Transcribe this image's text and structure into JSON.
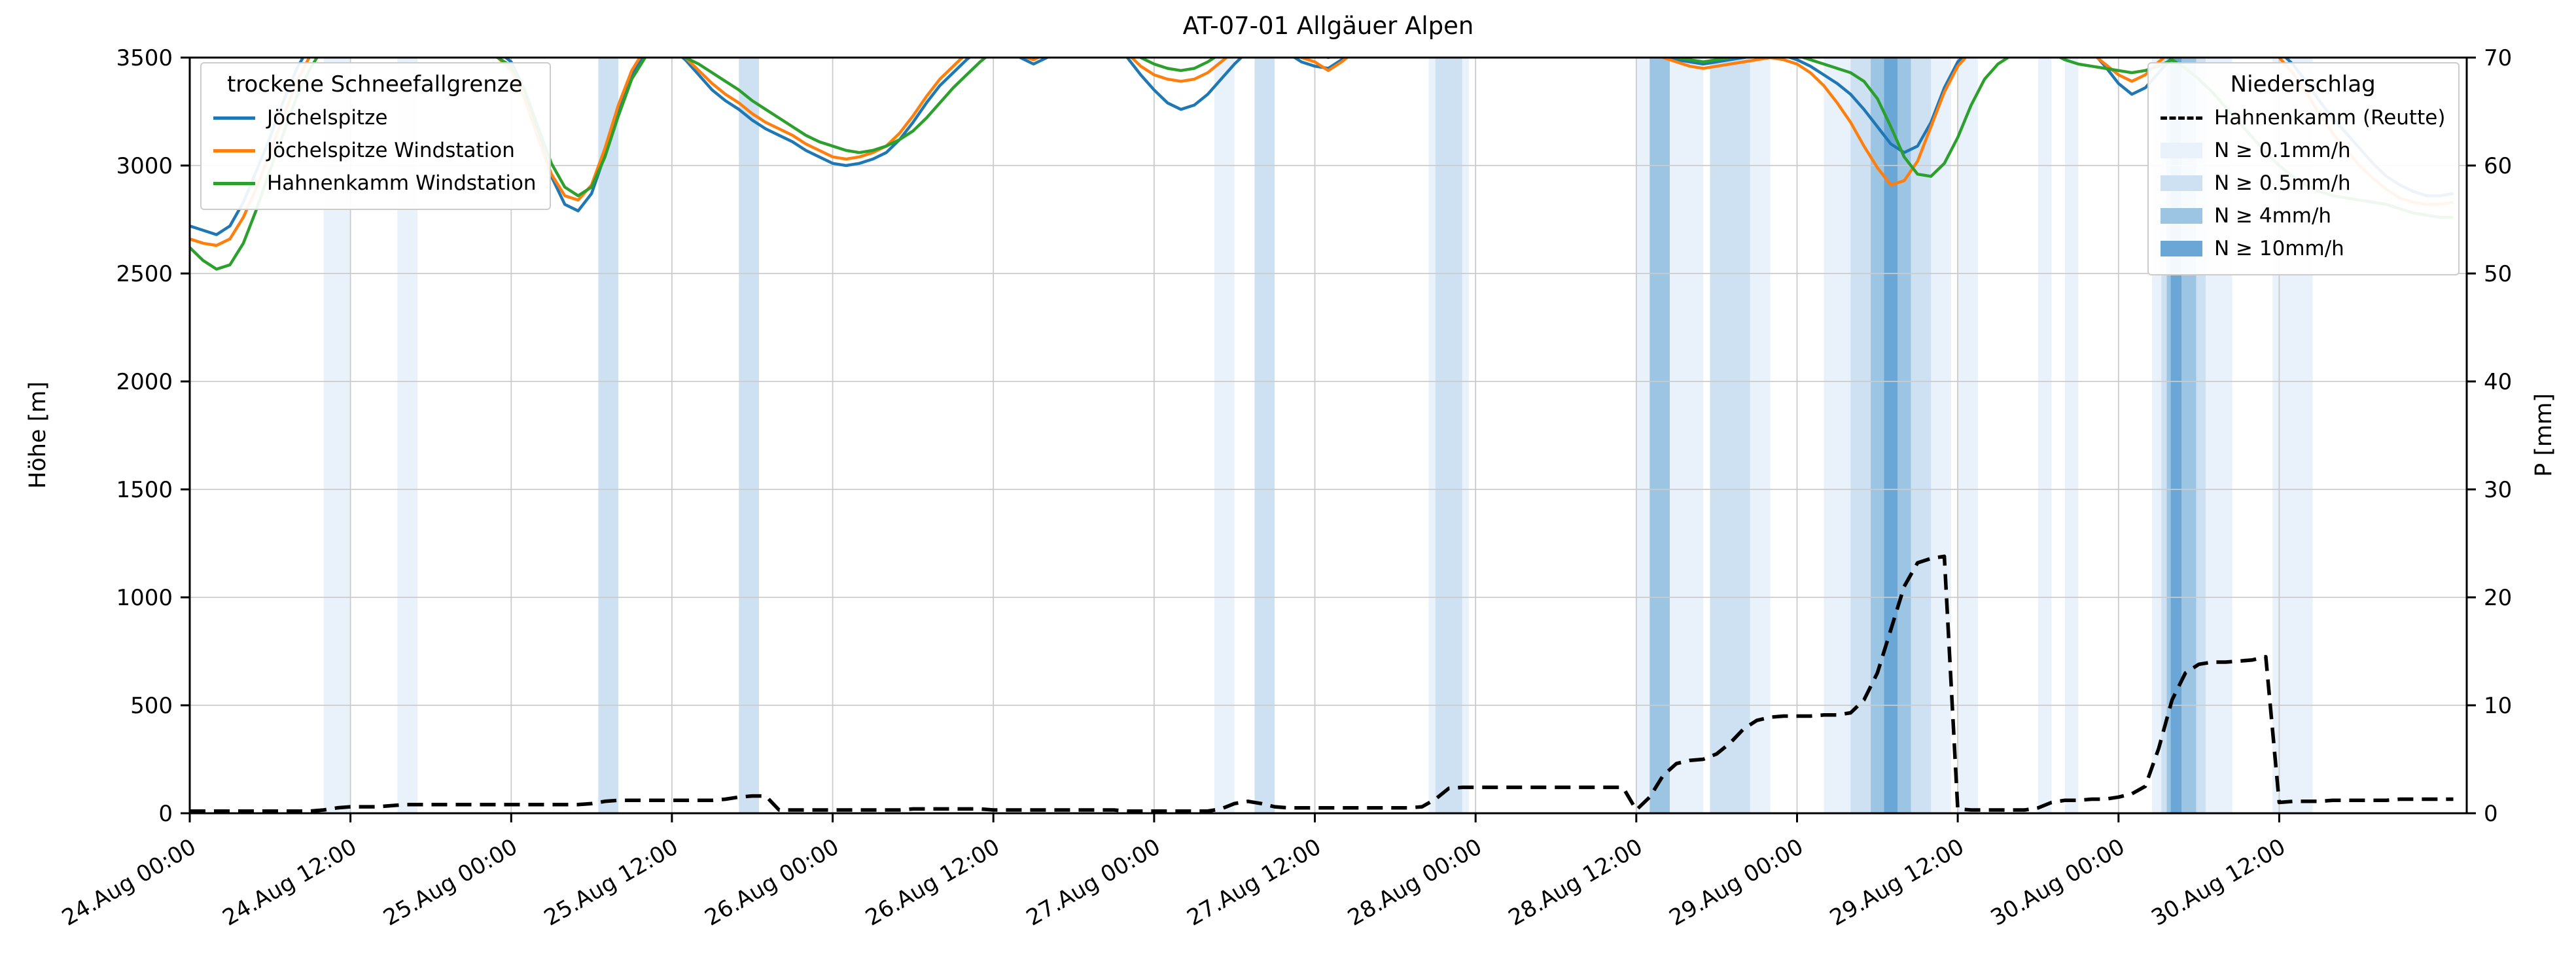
{
  "title": "AT-07-01 Allgäuer Alpen",
  "axes": {
    "y_left_label": "Höhe [m]",
    "y_right_label": "P [mm]"
  },
  "legends": {
    "snowline": {
      "title": "trockene Schneefallgrenze"
    },
    "precip": {
      "title": "Niederschlag"
    }
  },
  "chart_data": {
    "type": "line",
    "title": "AT-07-01 Allgäuer Alpen",
    "grid": true,
    "x_axis": {
      "unit": "hours since 24.Aug 00:00",
      "range": [
        0,
        170
      ],
      "ticks": [
        {
          "hour": 0,
          "label": "24.Aug 00:00"
        },
        {
          "hour": 12,
          "label": "24.Aug 12:00"
        },
        {
          "hour": 24,
          "label": "25.Aug 00:00"
        },
        {
          "hour": 36,
          "label": "25.Aug 12:00"
        },
        {
          "hour": 48,
          "label": "26.Aug 00:00"
        },
        {
          "hour": 60,
          "label": "26.Aug 12:00"
        },
        {
          "hour": 72,
          "label": "27.Aug 00:00"
        },
        {
          "hour": 84,
          "label": "27.Aug 12:00"
        },
        {
          "hour": 96,
          "label": "28.Aug 00:00"
        },
        {
          "hour": 108,
          "label": "28.Aug 12:00"
        },
        {
          "hour": 120,
          "label": "29.Aug 00:00"
        },
        {
          "hour": 132,
          "label": "29.Aug 12:00"
        },
        {
          "hour": 144,
          "label": "30.Aug 00:00"
        },
        {
          "hour": 156,
          "label": "30.Aug 12:00"
        }
      ]
    },
    "y_left": {
      "label": "Höhe [m]",
      "lim": [
        0,
        3500
      ],
      "ticks": [
        0,
        500,
        1000,
        1500,
        2000,
        2500,
        3000,
        3500
      ]
    },
    "y_right": {
      "label": "P [mm]",
      "lim": [
        0,
        70
      ],
      "ticks": [
        0,
        10,
        20,
        30,
        40,
        50,
        60,
        70
      ]
    },
    "series": [
      {
        "name": "Jöchelspitze",
        "axis": "left",
        "color": "#1f77b4",
        "style": "solid",
        "x_step_hours": 1,
        "values": [
          2720,
          2700,
          2680,
          2720,
          2830,
          2980,
          3130,
          3300,
          3450,
          3560,
          3650,
          3700,
          3680,
          3650,
          3600,
          3580,
          3620,
          3680,
          3700,
          3650,
          3600,
          3570,
          3550,
          3530,
          3480,
          3350,
          3150,
          2950,
          2820,
          2790,
          2870,
          3050,
          3250,
          3420,
          3520,
          3560,
          3540,
          3490,
          3420,
          3350,
          3300,
          3260,
          3210,
          3170,
          3140,
          3110,
          3070,
          3040,
          3010,
          3000,
          3010,
          3030,
          3060,
          3120,
          3200,
          3290,
          3370,
          3430,
          3490,
          3540,
          3580,
          3550,
          3500,
          3470,
          3500,
          3550,
          3600,
          3620,
          3600,
          3560,
          3500,
          3420,
          3350,
          3290,
          3260,
          3280,
          3330,
          3400,
          3470,
          3530,
          3570,
          3560,
          3520,
          3480,
          3460,
          3450,
          3490,
          3540,
          3590,
          3620,
          3640,
          3660,
          3650,
          3630,
          3600,
          3580,
          3570,
          3560,
          3570,
          3590,
          3610,
          3630,
          3650,
          3660,
          3650,
          3630,
          3610,
          3590,
          3560,
          3530,
          3510,
          3490,
          3480,
          3470,
          3480,
          3490,
          3500,
          3510,
          3520,
          3510,
          3490,
          3460,
          3420,
          3380,
          3330,
          3260,
          3180,
          3100,
          3060,
          3090,
          3200,
          3360,
          3480,
          3540,
          3580,
          3600,
          3620,
          3630,
          3620,
          3600,
          3580,
          3560,
          3530,
          3460,
          3380,
          3330,
          3360,
          3430,
          3500,
          3550,
          3580,
          3600,
          3610,
          3600,
          3580,
          3560,
          3530,
          3470,
          3390,
          3300,
          3220,
          3150,
          3080,
          3010,
          2950,
          2910,
          2880,
          2860,
          2860,
          2870
        ]
      },
      {
        "name": "Jöchelspitze Windstation",
        "axis": "left",
        "color": "#ff7f0e",
        "style": "solid",
        "x_step_hours": 1,
        "values": [
          2660,
          2640,
          2630,
          2660,
          2760,
          2900,
          3060,
          3230,
          3390,
          3510,
          3600,
          3660,
          3650,
          3620,
          3580,
          3560,
          3590,
          3640,
          3670,
          3630,
          3580,
          3550,
          3530,
          3500,
          3440,
          3310,
          3130,
          2960,
          2860,
          2840,
          2910,
          3080,
          3280,
          3440,
          3540,
          3570,
          3550,
          3500,
          3440,
          3380,
          3330,
          3290,
          3240,
          3200,
          3170,
          3140,
          3100,
          3070,
          3040,
          3030,
          3040,
          3060,
          3090,
          3150,
          3230,
          3320,
          3400,
          3460,
          3520,
          3560,
          3590,
          3560,
          3510,
          3490,
          3520,
          3560,
          3610,
          3630,
          3610,
          3570,
          3520,
          3460,
          3420,
          3400,
          3390,
          3400,
          3430,
          3480,
          3530,
          3570,
          3600,
          3580,
          3540,
          3500,
          3480,
          3440,
          3480,
          3530,
          3580,
          3610,
          3630,
          3650,
          3640,
          3620,
          3590,
          3570,
          3560,
          3550,
          3560,
          3580,
          3600,
          3620,
          3640,
          3650,
          3640,
          3620,
          3600,
          3580,
          3550,
          3520,
          3500,
          3480,
          3460,
          3450,
          3460,
          3470,
          3480,
          3490,
          3500,
          3490,
          3470,
          3430,
          3370,
          3290,
          3200,
          3090,
          2990,
          2910,
          2930,
          3020,
          3180,
          3340,
          3460,
          3530,
          3570,
          3590,
          3610,
          3620,
          3610,
          3590,
          3570,
          3550,
          3520,
          3470,
          3420,
          3390,
          3420,
          3480,
          3530,
          3570,
          3590,
          3600,
          3600,
          3590,
          3570,
          3540,
          3500,
          3430,
          3340,
          3240,
          3150,
          3070,
          3000,
          2940,
          2890,
          2850,
          2830,
          2820,
          2820,
          2830
        ]
      },
      {
        "name": "Hahnenkamm Windstation",
        "axis": "left",
        "color": "#2ca02c",
        "style": "solid",
        "x_step_hours": 1,
        "values": [
          2620,
          2560,
          2520,
          2540,
          2640,
          2800,
          2980,
          3150,
          3320,
          3450,
          3550,
          3620,
          3630,
          3600,
          3570,
          3550,
          3570,
          3610,
          3640,
          3610,
          3570,
          3540,
          3520,
          3500,
          3460,
          3350,
          3180,
          3010,
          2900,
          2860,
          2900,
          3040,
          3230,
          3400,
          3500,
          3540,
          3530,
          3500,
          3470,
          3430,
          3390,
          3350,
          3300,
          3260,
          3220,
          3180,
          3140,
          3110,
          3090,
          3070,
          3060,
          3070,
          3090,
          3120,
          3160,
          3220,
          3290,
          3360,
          3420,
          3480,
          3530,
          3540,
          3520,
          3500,
          3520,
          3560,
          3600,
          3620,
          3610,
          3580,
          3540,
          3500,
          3470,
          3450,
          3440,
          3450,
          3480,
          3520,
          3560,
          3590,
          3610,
          3600,
          3570,
          3540,
          3520,
          3500,
          3520,
          3560,
          3600,
          3620,
          3640,
          3650,
          3640,
          3620,
          3600,
          3580,
          3570,
          3560,
          3570,
          3590,
          3610,
          3630,
          3640,
          3650,
          3640,
          3620,
          3600,
          3580,
          3560,
          3540,
          3520,
          3500,
          3490,
          3480,
          3490,
          3500,
          3510,
          3520,
          3530,
          3520,
          3510,
          3490,
          3470,
          3450,
          3430,
          3390,
          3310,
          3180,
          3040,
          2960,
          2950,
          3010,
          3130,
          3280,
          3400,
          3470,
          3510,
          3540,
          3540,
          3520,
          3490,
          3470,
          3460,
          3450,
          3440,
          3430,
          3440,
          3460,
          3490,
          3450,
          3400,
          3340,
          3270,
          3200,
          3130,
          3060,
          3000,
          2950,
          2910,
          2880,
          2860,
          2850,
          2840,
          2830,
          2820,
          2800,
          2780,
          2770,
          2760,
          2760
        ]
      },
      {
        "name": "Hahnenkamm (Reutte)",
        "axis": "right",
        "color": "#000000",
        "style": "dashed",
        "x_step_hours": 1,
        "values": [
          0.2,
          0.2,
          0.2,
          0.2,
          0.2,
          0.2,
          0.2,
          0.2,
          0.2,
          0.2,
          0.3,
          0.5,
          0.6,
          0.6,
          0.6,
          0.7,
          0.8,
          0.8,
          0.8,
          0.8,
          0.8,
          0.8,
          0.8,
          0.8,
          0.8,
          0.8,
          0.8,
          0.8,
          0.8,
          0.8,
          0.9,
          1.1,
          1.2,
          1.2,
          1.2,
          1.2,
          1.2,
          1.2,
          1.2,
          1.2,
          1.3,
          1.5,
          1.6,
          1.6,
          0.3,
          0.3,
          0.3,
          0.3,
          0.3,
          0.3,
          0.3,
          0.3,
          0.3,
          0.3,
          0.4,
          0.4,
          0.4,
          0.4,
          0.4,
          0.4,
          0.3,
          0.3,
          0.3,
          0.3,
          0.3,
          0.3,
          0.3,
          0.3,
          0.3,
          0.3,
          0.2,
          0.2,
          0.2,
          0.2,
          0.2,
          0.2,
          0.2,
          0.4,
          0.9,
          1.1,
          0.9,
          0.6,
          0.5,
          0.5,
          0.5,
          0.5,
          0.5,
          0.5,
          0.5,
          0.5,
          0.5,
          0.5,
          0.6,
          1.3,
          2.3,
          2.4,
          2.4,
          2.4,
          2.4,
          2.4,
          2.4,
          2.4,
          2.4,
          2.4,
          2.4,
          2.4,
          2.4,
          2.4,
          0.3,
          1.5,
          3.5,
          4.6,
          4.9,
          5.0,
          5.5,
          6.5,
          7.8,
          8.6,
          8.9,
          9.0,
          9.0,
          9.0,
          9.1,
          9.1,
          9.3,
          10.5,
          13.0,
          17.0,
          21.0,
          23.2,
          23.6,
          23.8,
          0.4,
          0.3,
          0.3,
          0.3,
          0.3,
          0.3,
          0.5,
          1.0,
          1.2,
          1.2,
          1.3,
          1.3,
          1.5,
          1.8,
          2.5,
          6.0,
          10.5,
          13.0,
          13.8,
          14.0,
          14.0,
          14.1,
          14.2,
          14.5,
          1.0,
          1.1,
          1.1,
          1.1,
          1.2,
          1.2,
          1.2,
          1.2,
          1.2,
          1.3,
          1.3,
          1.3,
          1.3,
          1.3
        ]
      }
    ],
    "precip_bands": {
      "levels": [
        {
          "label": "N ≥ 0.1mm/h",
          "color": "#e9f2fb"
        },
        {
          "label": "N ≥ 0.5mm/h",
          "color": "#cde1f2"
        },
        {
          "label": "N ≥ 4mm/h",
          "color": "#9cc5e3"
        },
        {
          "label": "N ≥ 10mm/h",
          "color": "#6aa7d6"
        }
      ],
      "bands": [
        {
          "start": 10,
          "end": 12,
          "level": 1
        },
        {
          "start": 15.5,
          "end": 17,
          "level": 1
        },
        {
          "start": 30.5,
          "end": 32,
          "level": 2
        },
        {
          "start": 41,
          "end": 42.5,
          "level": 2
        },
        {
          "start": 76.5,
          "end": 78,
          "level": 1
        },
        {
          "start": 79.5,
          "end": 81,
          "level": 2
        },
        {
          "start": 92.5,
          "end": 95.5,
          "level": 1
        },
        {
          "start": 93,
          "end": 95,
          "level": 2
        },
        {
          "start": 108,
          "end": 113,
          "level": 1
        },
        {
          "start": 109,
          "end": 110.5,
          "level": 3
        },
        {
          "start": 113.5,
          "end": 116.5,
          "level": 2
        },
        {
          "start": 116.5,
          "end": 118,
          "level": 1
        },
        {
          "start": 122,
          "end": 131.5,
          "level": 1
        },
        {
          "start": 124,
          "end": 130,
          "level": 2
        },
        {
          "start": 125.5,
          "end": 128.5,
          "level": 3
        },
        {
          "start": 126.5,
          "end": 127.5,
          "level": 4
        },
        {
          "start": 132,
          "end": 133.5,
          "level": 1
        },
        {
          "start": 138,
          "end": 139,
          "level": 1
        },
        {
          "start": 140,
          "end": 141,
          "level": 1
        },
        {
          "start": 146.5,
          "end": 152.5,
          "level": 1
        },
        {
          "start": 147.2,
          "end": 150.5,
          "level": 2
        },
        {
          "start": 147.6,
          "end": 149.8,
          "level": 3
        },
        {
          "start": 147.9,
          "end": 148.7,
          "level": 4
        },
        {
          "start": 155.5,
          "end": 158.5,
          "level": 1
        }
      ]
    }
  }
}
